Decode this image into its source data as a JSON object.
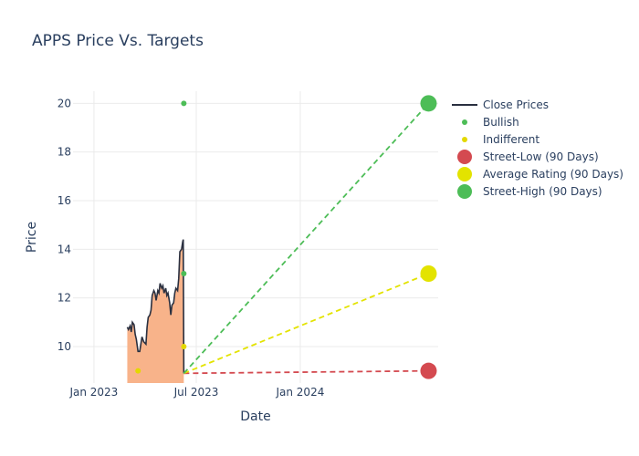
{
  "chart_data": {
    "type": "line",
    "title": "APPS Price Vs. Targets",
    "xlabel": "Date",
    "ylabel": "Price",
    "x_range": [
      "2022-11-25",
      "2024-09-01"
    ],
    "ylim": [
      8.5,
      20.5
    ],
    "x_ticks": [
      {
        "date": "2023-01-01",
        "label": "Jan 2023"
      },
      {
        "date": "2023-07-01",
        "label": "Jul 2023"
      },
      {
        "date": "2024-01-01",
        "label": "Jan 2024"
      }
    ],
    "y_ticks": [
      10,
      12,
      14,
      16,
      18,
      20
    ],
    "grid": true,
    "legend_position": "right",
    "colors": {
      "close": "#2a3040",
      "fill": "#f8b38a",
      "bullish": "#4dbd57",
      "indifferent": "#e3d800",
      "street_low": "#d44a50",
      "average": "#e3e300",
      "street_high": "#4dbd57"
    },
    "series": [
      {
        "name": "Close Prices",
        "kind": "line",
        "points": [
          [
            "2023-03-01",
            10.8
          ],
          [
            "2023-03-03",
            10.7
          ],
          [
            "2023-03-06",
            10.85
          ],
          [
            "2023-03-08",
            10.6
          ],
          [
            "2023-03-10",
            11.0
          ],
          [
            "2023-03-13",
            10.9
          ],
          [
            "2023-03-15",
            10.5
          ],
          [
            "2023-03-17",
            10.3
          ],
          [
            "2023-03-20",
            9.8
          ],
          [
            "2023-03-23",
            9.8
          ],
          [
            "2023-03-27",
            10.4
          ],
          [
            "2023-03-30",
            10.2
          ],
          [
            "2023-04-03",
            10.1
          ],
          [
            "2023-04-05",
            10.8
          ],
          [
            "2023-04-07",
            11.2
          ],
          [
            "2023-04-10",
            11.3
          ],
          [
            "2023-04-12",
            11.5
          ],
          [
            "2023-04-14",
            12.1
          ],
          [
            "2023-04-17",
            12.3
          ],
          [
            "2023-04-19",
            12.2
          ],
          [
            "2023-04-21",
            11.9
          ],
          [
            "2023-04-24",
            12.3
          ],
          [
            "2023-04-26",
            12.2
          ],
          [
            "2023-04-28",
            12.6
          ],
          [
            "2023-05-01",
            12.4
          ],
          [
            "2023-05-03",
            12.5
          ],
          [
            "2023-05-05",
            12.2
          ],
          [
            "2023-05-08",
            12.4
          ],
          [
            "2023-05-10",
            12.1
          ],
          [
            "2023-05-12",
            12.2
          ],
          [
            "2023-05-15",
            11.8
          ],
          [
            "2023-05-17",
            11.3
          ],
          [
            "2023-05-19",
            11.7
          ],
          [
            "2023-05-22",
            11.8
          ],
          [
            "2023-05-24",
            12.2
          ],
          [
            "2023-05-26",
            12.4
          ],
          [
            "2023-05-29",
            12.3
          ],
          [
            "2023-05-31",
            12.8
          ],
          [
            "2023-06-02",
            13.9
          ],
          [
            "2023-06-05",
            14.0
          ],
          [
            "2023-06-07",
            14.3
          ],
          [
            "2023-06-08",
            14.4
          ],
          [
            "2023-06-09",
            8.9
          ]
        ]
      },
      {
        "name": "Bullish",
        "kind": "markers",
        "points": [
          [
            "2023-06-09",
            20.0
          ],
          [
            "2023-06-09",
            13.0
          ]
        ]
      },
      {
        "name": "Indifferent",
        "kind": "markers",
        "points": [
          [
            "2023-03-20",
            9.0
          ],
          [
            "2023-06-09",
            10.0
          ]
        ]
      },
      {
        "name": "Street-Low (90 Days)",
        "kind": "target",
        "start": [
          "2023-06-09",
          8.9
        ],
        "end": [
          "2024-08-15",
          9.0
        ]
      },
      {
        "name": "Average Rating (90 Days)",
        "kind": "target",
        "start": [
          "2023-06-09",
          8.9
        ],
        "end": [
          "2024-08-15",
          13.0
        ]
      },
      {
        "name": "Street-High (90 Days)",
        "kind": "target",
        "start": [
          "2023-06-09",
          8.9
        ],
        "end": [
          "2024-08-15",
          20.0
        ]
      }
    ]
  }
}
